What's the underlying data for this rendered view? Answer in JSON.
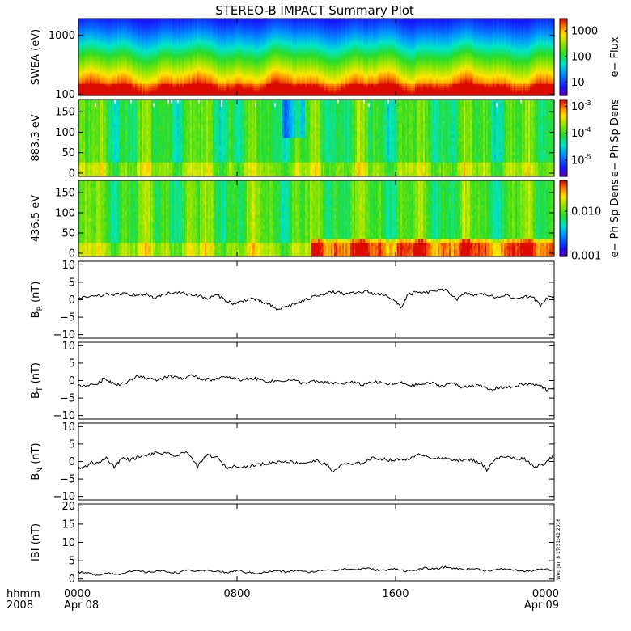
{
  "chart_data": {
    "title": "STEREO-B IMPACT Summary Plot",
    "x_axis": {
      "units": "hhmm",
      "year": "2008",
      "range_hours": [
        0,
        24
      ],
      "ticks": [
        {
          "hour": 0,
          "time": "0000",
          "date": "Apr 08"
        },
        {
          "hour": 8,
          "time": "0800",
          "date": ""
        },
        {
          "hour": 16,
          "time": "1600",
          "date": ""
        },
        {
          "hour": 24,
          "time": "0000",
          "date": "Apr 09"
        }
      ]
    },
    "panels": [
      {
        "id": "swea",
        "type": "heatmap",
        "ylabel": "SWEA (eV)",
        "yscale": "log",
        "ylim": [
          95,
          1900
        ],
        "yticks": [
          {
            "value": 100,
            "label": "100"
          },
          {
            "value": 1000,
            "label": "1000"
          }
        ],
        "colorbar": {
          "label": "e− Flux",
          "scale": "log",
          "range": [
            3,
            3000
          ],
          "ticks": [
            {
              "value": 10,
              "label": "10"
            },
            {
              "value": 100,
              "label": "100"
            },
            {
              "value": 1000,
              "label": "1000"
            }
          ]
        }
      },
      {
        "id": "pad883",
        "type": "heatmap",
        "ylabel": "883.3 eV",
        "yscale": "linear",
        "ylim": [
          -8,
          180
        ],
        "yticks": [
          {
            "value": 0,
            "label": "0"
          },
          {
            "value": 50,
            "label": "50"
          },
          {
            "value": 100,
            "label": "100"
          },
          {
            "value": 150,
            "label": "150"
          }
        ],
        "colorbar": {
          "label": "e− Ph Sp Dens",
          "scale": "log",
          "range": [
            2.5e-06,
            0.0018
          ],
          "ticks": [
            {
              "value": 1e-05,
              "label": "10",
              "exp": "-5"
            },
            {
              "value": 0.0001,
              "label": "10",
              "exp": "-4"
            },
            {
              "value": 0.001,
              "label": "10",
              "exp": "-3"
            }
          ]
        }
      },
      {
        "id": "pad436",
        "type": "heatmap",
        "ylabel": "436.5 eV",
        "yscale": "linear",
        "ylim": [
          -8,
          180
        ],
        "yticks": [
          {
            "value": 0,
            "label": "0"
          },
          {
            "value": 50,
            "label": "50"
          },
          {
            "value": 100,
            "label": "100"
          },
          {
            "value": 150,
            "label": "150"
          }
        ],
        "colorbar": {
          "label": "e− Ph Sp Dens",
          "scale": "log",
          "range": [
            0.00095,
            0.05
          ],
          "ticks": [
            {
              "value": 0.001,
              "label": "0.001"
            },
            {
              "value": 0.01,
              "label": "0.010"
            }
          ]
        }
      },
      {
        "id": "br",
        "type": "line",
        "ylabel_main": "B",
        "ylabel_sub": "R",
        "ylabel_units": "(nT)",
        "ylim": [
          -11,
          11
        ],
        "yticks": [
          {
            "value": -10,
            "label": "−10"
          },
          {
            "value": -5,
            "label": "−5"
          },
          {
            "value": 0,
            "label": "0"
          },
          {
            "value": 5,
            "label": "5"
          },
          {
            "value": 10,
            "label": "10"
          }
        ],
        "anchors": [
          [
            0,
            0.3
          ],
          [
            0.5,
            0.8
          ],
          [
            1,
            1.0
          ],
          [
            1.5,
            1.6
          ],
          [
            2,
            1.5
          ],
          [
            2.5,
            1.7
          ],
          [
            3,
            1.2
          ],
          [
            3.5,
            1.6
          ],
          [
            3.8,
            0.2
          ],
          [
            4.2,
            1.5
          ],
          [
            5,
            2.2
          ],
          [
            5.5,
            1.6
          ],
          [
            6,
            1.2
          ],
          [
            6.5,
            0.3
          ],
          [
            7,
            1.4
          ],
          [
            7.5,
            -0.4
          ],
          [
            7.9,
            -1.3
          ],
          [
            8.3,
            -0.2
          ],
          [
            8.8,
            0.4
          ],
          [
            9.2,
            -0.6
          ],
          [
            9.6,
            -1.3
          ],
          [
            10,
            -2.8
          ],
          [
            10.5,
            -1.9
          ],
          [
            11,
            -1.0
          ],
          [
            11.5,
            0.0
          ],
          [
            12,
            1.2
          ],
          [
            12.5,
            1.9
          ],
          [
            13,
            2.2
          ],
          [
            13.5,
            1.5
          ],
          [
            14,
            1.9
          ],
          [
            14.5,
            2.4
          ],
          [
            15,
            1.6
          ],
          [
            15.5,
            1.5
          ],
          [
            16,
            -0.6
          ],
          [
            16.3,
            -2.2
          ],
          [
            16.6,
            1.3
          ],
          [
            17,
            2.1
          ],
          [
            17.5,
            1.9
          ],
          [
            18,
            2.7
          ],
          [
            18.6,
            2.6
          ],
          [
            19.1,
            0.2
          ],
          [
            19.5,
            1.7
          ],
          [
            20,
            1.3
          ],
          [
            20.5,
            1.7
          ],
          [
            21,
            0.6
          ],
          [
            21.5,
            1.5
          ],
          [
            22,
            0.2
          ],
          [
            22.5,
            1.0
          ],
          [
            23,
            0.3
          ],
          [
            23.3,
            -1.7
          ],
          [
            23.6,
            0.5
          ],
          [
            24,
            1.0
          ]
        ]
      },
      {
        "id": "bt",
        "type": "line",
        "ylabel_main": "B",
        "ylabel_sub": "T",
        "ylabel_units": "(nT)",
        "ylim": [
          -11,
          11
        ],
        "yticks": [
          {
            "value": -10,
            "label": "−10"
          },
          {
            "value": -5,
            "label": "−5"
          },
          {
            "value": 0,
            "label": "0"
          },
          {
            "value": 5,
            "label": "5"
          },
          {
            "value": 10,
            "label": "10"
          }
        ],
        "anchors": [
          [
            0,
            -1.5
          ],
          [
            0.5,
            -1.3
          ],
          [
            1,
            -0.8
          ],
          [
            1.3,
            0.7
          ],
          [
            1.6,
            -0.3
          ],
          [
            2,
            -1.1
          ],
          [
            2.5,
            -0.5
          ],
          [
            3,
            1.5
          ],
          [
            3.5,
            0.5
          ],
          [
            4,
            0.2
          ],
          [
            4.5,
            1.2
          ],
          [
            5,
            1.0
          ],
          [
            5.4,
            0.5
          ],
          [
            5.8,
            1.6
          ],
          [
            6.2,
            0.5
          ],
          [
            6.7,
            0.2
          ],
          [
            7.2,
            0.9
          ],
          [
            7.7,
            0.8
          ],
          [
            8.2,
            0.1
          ],
          [
            8.7,
            0.7
          ],
          [
            9.2,
            0.2
          ],
          [
            9.7,
            -0.3
          ],
          [
            10.2,
            0.0
          ],
          [
            10.8,
            0.2
          ],
          [
            11.3,
            -0.8
          ],
          [
            11.8,
            -0.2
          ],
          [
            12.3,
            -0.6
          ],
          [
            12.8,
            -0.7
          ],
          [
            13.3,
            -0.9
          ],
          [
            13.8,
            -0.5
          ],
          [
            14.3,
            -1.2
          ],
          [
            14.8,
            -0.4
          ],
          [
            15.3,
            -0.7
          ],
          [
            15.8,
            -1.1
          ],
          [
            16.3,
            -0.7
          ],
          [
            16.8,
            -1.4
          ],
          [
            17.3,
            -1.1
          ],
          [
            17.8,
            -0.7
          ],
          [
            18.3,
            -1.6
          ],
          [
            18.8,
            -0.6
          ],
          [
            19.3,
            -1.9
          ],
          [
            19.8,
            -1.4
          ],
          [
            20.3,
            -1.6
          ],
          [
            20.8,
            -2.7
          ],
          [
            21.3,
            -1.9
          ],
          [
            21.8,
            -2.0
          ],
          [
            22.3,
            -1.2
          ],
          [
            22.8,
            -1.0
          ],
          [
            23.3,
            -1.5
          ],
          [
            23.6,
            -2.6
          ],
          [
            24,
            -2.0
          ]
        ]
      },
      {
        "id": "bn",
        "type": "line",
        "ylabel_main": "B",
        "ylabel_sub": "N",
        "ylabel_units": "(nT)",
        "ylim": [
          -11,
          11
        ],
        "yticks": [
          {
            "value": -10,
            "label": "−10"
          },
          {
            "value": -5,
            "label": "−5"
          },
          {
            "value": 0,
            "label": "0"
          },
          {
            "value": 5,
            "label": "5"
          },
          {
            "value": 10,
            "label": "10"
          }
        ],
        "anchors": [
          [
            0,
            -2.2
          ],
          [
            0.3,
            -1.8
          ],
          [
            0.6,
            -0.3
          ],
          [
            1,
            -0.6
          ],
          [
            1.4,
            1.1
          ],
          [
            1.8,
            -1.5
          ],
          [
            2.2,
            1.0
          ],
          [
            2.6,
            0.5
          ],
          [
            3,
            1.2
          ],
          [
            3.5,
            1.9
          ],
          [
            4,
            2.5
          ],
          [
            4.5,
            2.1
          ],
          [
            5,
            1.6
          ],
          [
            5.5,
            2.9
          ],
          [
            6,
            -1.6
          ],
          [
            6.5,
            2.0
          ],
          [
            7,
            1.0
          ],
          [
            7.5,
            -1.9
          ],
          [
            8,
            -1.2
          ],
          [
            8.5,
            -1.6
          ],
          [
            9,
            -0.9
          ],
          [
            9.5,
            -0.6
          ],
          [
            10,
            -0.1
          ],
          [
            10.5,
            0.1
          ],
          [
            11,
            -0.4
          ],
          [
            11.5,
            -0.3
          ],
          [
            12,
            0.2
          ],
          [
            12.5,
            -0.9
          ],
          [
            12.9,
            -3.0
          ],
          [
            13.3,
            -0.6
          ],
          [
            13.8,
            -0.9
          ],
          [
            14.3,
            -0.4
          ],
          [
            14.8,
            0.9
          ],
          [
            15.3,
            0.8
          ],
          [
            15.8,
            0.3
          ],
          [
            16.3,
            0.6
          ],
          [
            16.8,
            0.9
          ],
          [
            17.3,
            2.2
          ],
          [
            17.8,
            1.1
          ],
          [
            18.3,
            0.8
          ],
          [
            18.8,
            0.7
          ],
          [
            19.3,
            0.3
          ],
          [
            19.8,
            0.5
          ],
          [
            20.3,
            -0.4
          ],
          [
            20.6,
            -2.3
          ],
          [
            21,
            0.6
          ],
          [
            21.5,
            1.4
          ],
          [
            22,
            0.9
          ],
          [
            22.5,
            0.8
          ],
          [
            23,
            -1.5
          ],
          [
            23.5,
            -0.6
          ],
          [
            24,
            2.0
          ]
        ]
      },
      {
        "id": "bmag",
        "type": "line",
        "ylabel_main": "IBI",
        "ylabel_units": "(nT)",
        "ylim": [
          -0.5,
          20.5
        ],
        "yticks": [
          {
            "value": 0,
            "label": "0"
          },
          {
            "value": 5,
            "label": "5"
          },
          {
            "value": 10,
            "label": "10"
          },
          {
            "value": 15,
            "label": "15"
          },
          {
            "value": 20,
            "label": "20"
          }
        ],
        "anchors": [
          [
            0,
            1.8
          ],
          [
            0.5,
            1.6
          ],
          [
            1,
            1.1
          ],
          [
            1.5,
            1.7
          ],
          [
            2,
            1.3
          ],
          [
            2.5,
            2.0
          ],
          [
            3,
            2.2
          ],
          [
            3.5,
            1.8
          ],
          [
            4,
            2.3
          ],
          [
            4.5,
            2.0
          ],
          [
            5,
            1.7
          ],
          [
            5.5,
            2.5
          ],
          [
            6,
            2.1
          ],
          [
            6.5,
            2.3
          ],
          [
            7,
            2.2
          ],
          [
            7.5,
            1.7
          ],
          [
            8,
            2.4
          ],
          [
            8.5,
            1.8
          ],
          [
            9,
            1.6
          ],
          [
            9.5,
            1.9
          ],
          [
            10,
            2.3
          ],
          [
            10.5,
            1.9
          ],
          [
            11,
            2.4
          ],
          [
            11.5,
            1.9
          ],
          [
            12,
            2.1
          ],
          [
            12.5,
            2.6
          ],
          [
            13,
            2.4
          ],
          [
            13.5,
            2.8
          ],
          [
            14,
            2.6
          ],
          [
            14.5,
            3.0
          ],
          [
            15,
            2.5
          ],
          [
            15.5,
            2.4
          ],
          [
            16,
            2.9
          ],
          [
            16.5,
            2.2
          ],
          [
            17,
            2.4
          ],
          [
            17.5,
            3.0
          ],
          [
            18,
            2.7
          ],
          [
            18.5,
            3.3
          ],
          [
            19,
            2.9
          ],
          [
            19.5,
            2.7
          ],
          [
            20,
            2.9
          ],
          [
            20.5,
            2.3
          ],
          [
            21,
            2.5
          ],
          [
            21.5,
            2.8
          ],
          [
            22,
            2.5
          ],
          [
            22.5,
            2.1
          ],
          [
            23,
            2.4
          ],
          [
            23.5,
            2.7
          ],
          [
            24,
            2.3
          ]
        ]
      }
    ],
    "timestamp": "Wed Jun  8 17:31:42 2016"
  }
}
